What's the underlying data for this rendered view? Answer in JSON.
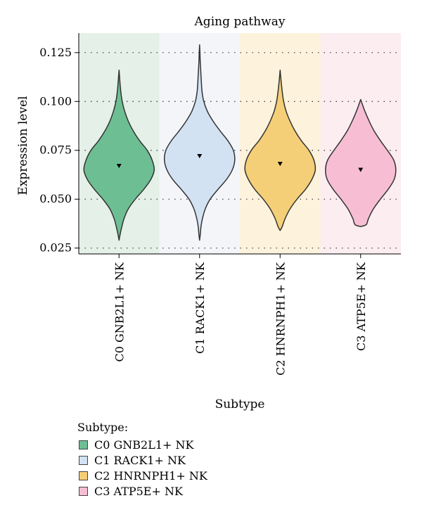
{
  "chart_data": {
    "type": "violin",
    "title": "Aging pathway",
    "xlabel": "Subtype",
    "ylabel": "Expression level",
    "ylim": [
      0.022,
      0.135
    ],
    "yticks": [
      "0.025",
      "0.050",
      "0.075",
      "0.100",
      "0.125"
    ],
    "grid": "horizontal-dotted",
    "legend_position": "bottom-left",
    "categories": [
      "C0 GNB2L1+ NK",
      "C1 RACK1+ NK",
      "C2 HNRNPH1+ NK",
      "C3 ATP5E+ NK"
    ],
    "series": [
      {
        "name": "C0 GNB2L1+ NK",
        "color": "#6dbf93",
        "panel_color": "#e4f0e8",
        "min": 0.029,
        "max": 0.116,
        "mean": 0.067,
        "profile": [
          [
            0.029,
            0.0
          ],
          [
            0.032,
            0.03
          ],
          [
            0.036,
            0.08
          ],
          [
            0.04,
            0.14
          ],
          [
            0.045,
            0.26
          ],
          [
            0.05,
            0.46
          ],
          [
            0.055,
            0.7
          ],
          [
            0.06,
            0.9
          ],
          [
            0.065,
            1.0
          ],
          [
            0.07,
            0.94
          ],
          [
            0.075,
            0.8
          ],
          [
            0.08,
            0.58
          ],
          [
            0.085,
            0.4
          ],
          [
            0.09,
            0.26
          ],
          [
            0.095,
            0.16
          ],
          [
            0.1,
            0.09
          ],
          [
            0.105,
            0.05
          ],
          [
            0.11,
            0.025
          ],
          [
            0.116,
            0.0
          ]
        ]
      },
      {
        "name": "C1 RACK1+ NK",
        "color": "#d3e2f3",
        "panel_color": "#f3f5f8",
        "min": 0.029,
        "max": 0.129,
        "mean": 0.072,
        "profile": [
          [
            0.029,
            0.0
          ],
          [
            0.032,
            0.02
          ],
          [
            0.036,
            0.04
          ],
          [
            0.04,
            0.08
          ],
          [
            0.045,
            0.16
          ],
          [
            0.05,
            0.3
          ],
          [
            0.055,
            0.52
          ],
          [
            0.06,
            0.76
          ],
          [
            0.065,
            0.93
          ],
          [
            0.07,
            1.0
          ],
          [
            0.075,
            0.96
          ],
          [
            0.08,
            0.8
          ],
          [
            0.085,
            0.58
          ],
          [
            0.09,
            0.38
          ],
          [
            0.095,
            0.22
          ],
          [
            0.1,
            0.12
          ],
          [
            0.105,
            0.07
          ],
          [
            0.11,
            0.05
          ],
          [
            0.115,
            0.035
          ],
          [
            0.12,
            0.02
          ],
          [
            0.125,
            0.01
          ],
          [
            0.129,
            0.0
          ]
        ]
      },
      {
        "name": "C2 HNRNPH1+ NK",
        "color": "#f5cf77",
        "panel_color": "#fdf2dc",
        "min": 0.034,
        "max": 0.116,
        "mean": 0.068,
        "profile": [
          [
            0.034,
            0.0
          ],
          [
            0.036,
            0.06
          ],
          [
            0.04,
            0.14
          ],
          [
            0.045,
            0.28
          ],
          [
            0.05,
            0.48
          ],
          [
            0.055,
            0.72
          ],
          [
            0.06,
            0.9
          ],
          [
            0.065,
            1.0
          ],
          [
            0.07,
            0.96
          ],
          [
            0.075,
            0.82
          ],
          [
            0.08,
            0.6
          ],
          [
            0.085,
            0.42
          ],
          [
            0.09,
            0.28
          ],
          [
            0.095,
            0.17
          ],
          [
            0.1,
            0.1
          ],
          [
            0.105,
            0.06
          ],
          [
            0.11,
            0.03
          ],
          [
            0.116,
            0.0
          ]
        ]
      },
      {
        "name": "C3 ATP5E+ NK",
        "color": "#f7bed3",
        "panel_color": "#fcedf1",
        "min": 0.036,
        "max": 0.101,
        "mean": 0.065,
        "profile": [
          [
            0.036,
            0.0
          ],
          [
            0.037,
            0.16
          ],
          [
            0.04,
            0.22
          ],
          [
            0.045,
            0.36
          ],
          [
            0.05,
            0.56
          ],
          [
            0.055,
            0.78
          ],
          [
            0.06,
            0.95
          ],
          [
            0.065,
            1.0
          ],
          [
            0.07,
            0.94
          ],
          [
            0.075,
            0.76
          ],
          [
            0.08,
            0.56
          ],
          [
            0.085,
            0.38
          ],
          [
            0.09,
            0.24
          ],
          [
            0.095,
            0.12
          ],
          [
            0.101,
            0.0
          ]
        ]
      }
    ]
  },
  "legend": {
    "title": "Subtype:",
    "items": [
      {
        "label": "C0 GNB2L1+ NK",
        "color": "#6dbf93"
      },
      {
        "label": "C1 RACK1+ NK",
        "color": "#d3e2f3"
      },
      {
        "label": "C2 HNRNPH1+ NK",
        "color": "#f5cf77"
      },
      {
        "label": "C3 ATP5E+ NK",
        "color": "#f7bed3"
      }
    ]
  }
}
